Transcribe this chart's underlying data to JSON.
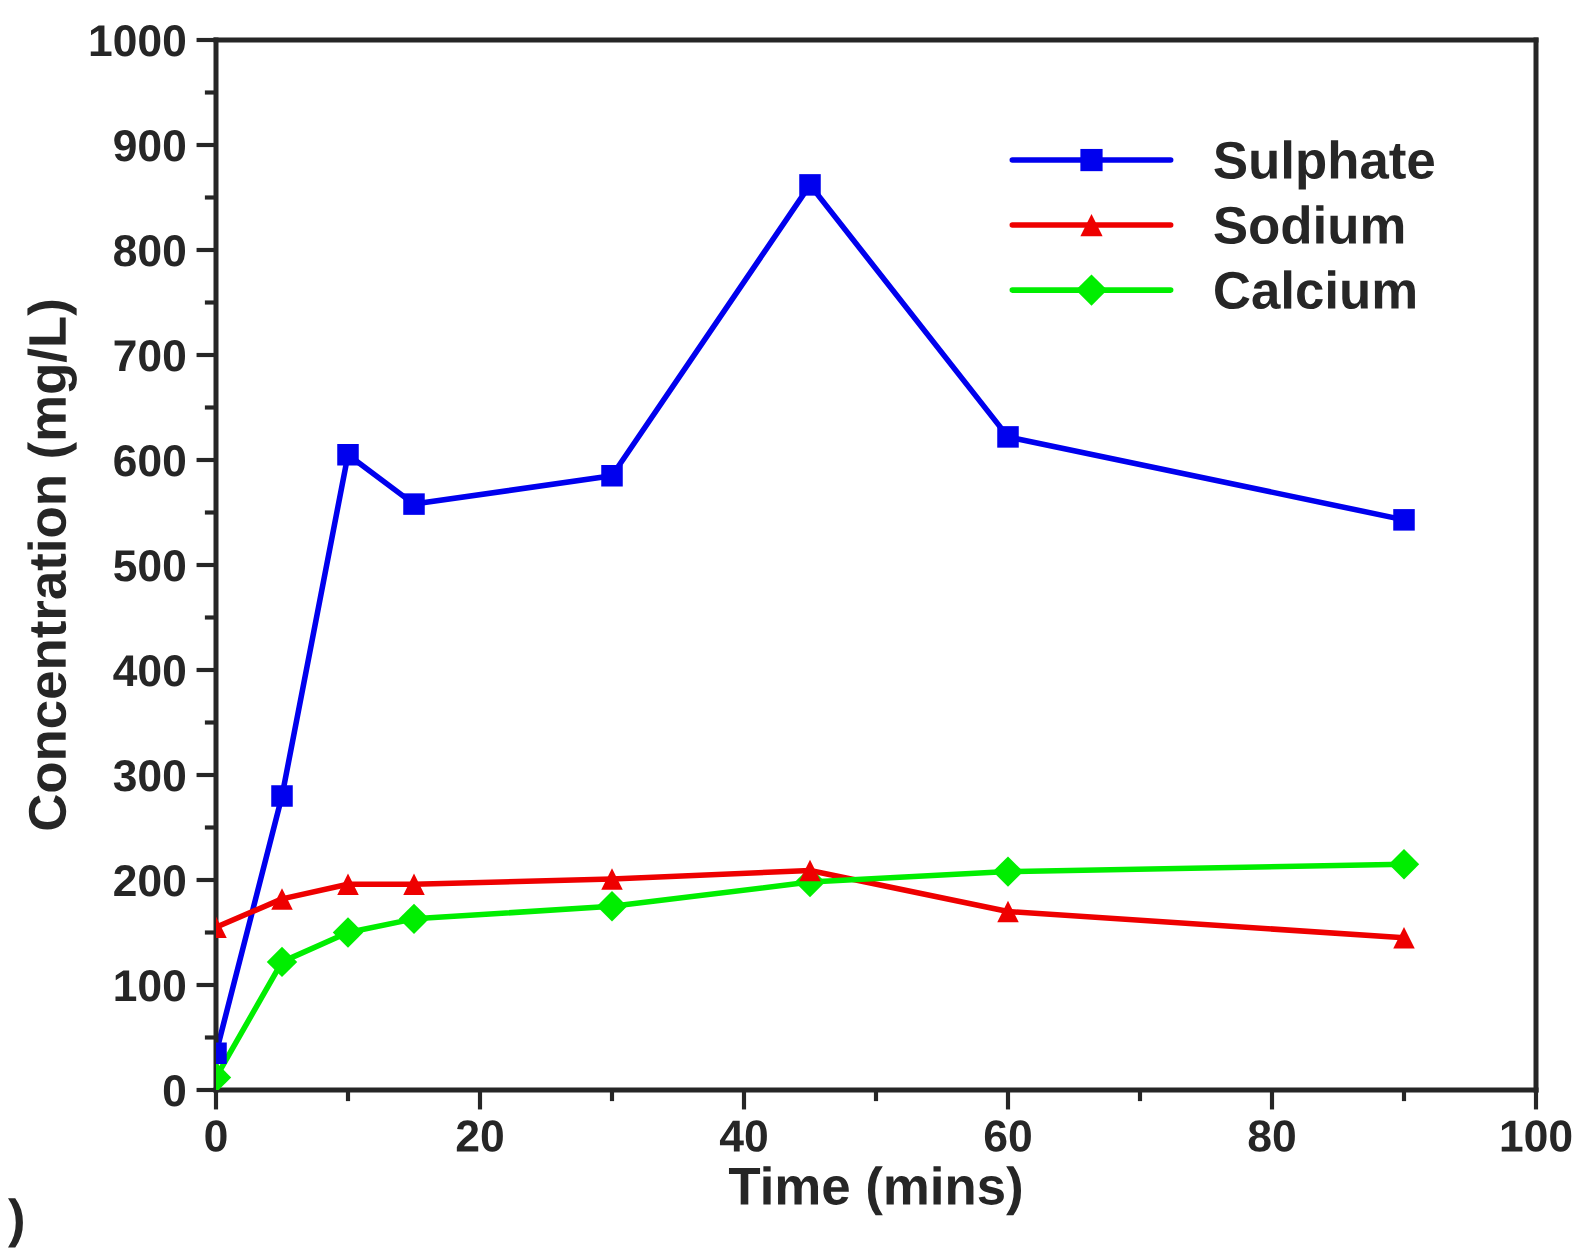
{
  "chart_data": {
    "type": "line",
    "xlabel": "Time (mins)",
    "ylabel": "Concentration (mg/L)",
    "x": [
      0,
      5,
      10,
      15,
      30,
      45,
      60,
      90
    ],
    "series": [
      {
        "name": "Sulphate",
        "color": "#0000ee",
        "marker": "square",
        "values": [
          35,
          280,
          605,
          558,
          585,
          862,
          622,
          543
        ]
      },
      {
        "name": "Sodium",
        "color": "#ee0000",
        "marker": "triangle",
        "values": [
          155,
          182,
          196,
          196,
          201,
          209,
          170,
          145
        ]
      },
      {
        "name": "Calcium",
        "color": "#00ee00",
        "marker": "diamond",
        "values": [
          12,
          122,
          150,
          163,
          175,
          198,
          208,
          215
        ]
      }
    ],
    "xlim": [
      0,
      100
    ],
    "xticks": [
      0,
      20,
      40,
      60,
      80,
      100
    ],
    "ylim": [
      0,
      1000
    ],
    "yticks": [
      0,
      100,
      200,
      300,
      400,
      500,
      600,
      700,
      800,
      900,
      1000
    ],
    "grid": false,
    "legend": "top right",
    "line_style": "solid",
    "annotations": [
      ")"
    ]
  }
}
